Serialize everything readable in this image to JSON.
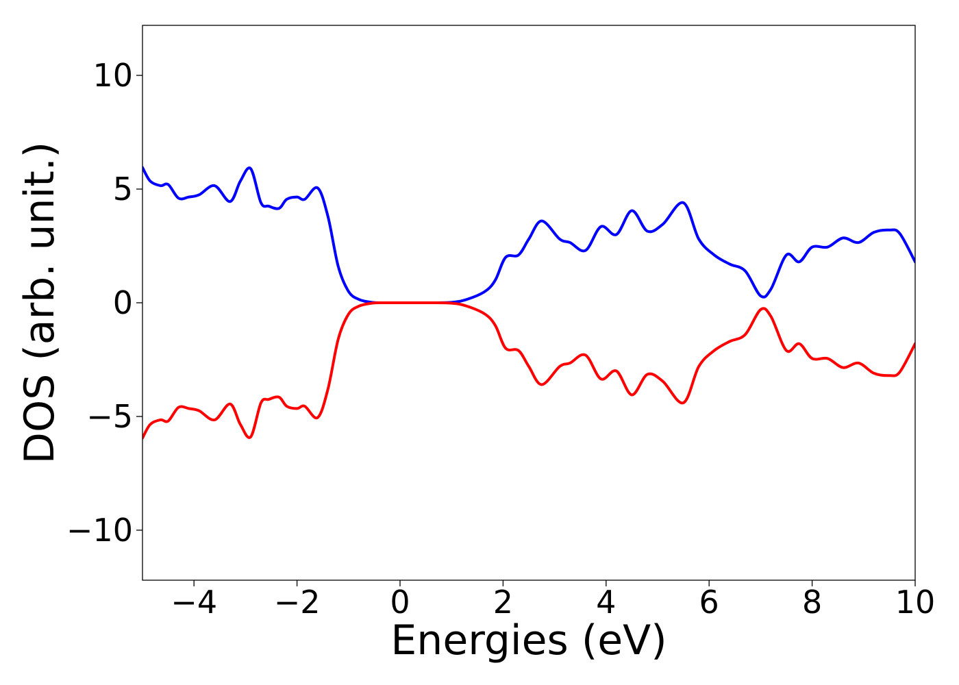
{
  "chart_data": {
    "type": "line",
    "title": "",
    "xlabel": "Energies (eV)",
    "ylabel": "DOS (arb. unit.)",
    "xlim": [
      -5,
      10
    ],
    "ylim": [
      -12.2,
      12.2
    ],
    "xticks": [
      -4,
      -2,
      0,
      2,
      4,
      6,
      8,
      10
    ],
    "yticks": [
      -10,
      -5,
      0,
      5,
      10
    ],
    "xtick_labels": [
      "−4",
      "−2",
      "0",
      "2",
      "4",
      "6",
      "8",
      "10"
    ],
    "ytick_labels": [
      "−10",
      "−5",
      "0",
      "5",
      "10"
    ],
    "grid": false,
    "legend": "none",
    "series": [
      {
        "color": "#0000ff",
        "x": [
          -5.0,
          -4.85,
          -4.65,
          -4.5,
          -4.3,
          -4.1,
          -3.9,
          -3.6,
          -3.3,
          -3.1,
          -2.9,
          -2.7,
          -2.55,
          -2.35,
          -2.2,
          -2.0,
          -1.85,
          -1.6,
          -1.4,
          -1.2,
          -1.0,
          -0.8,
          -0.55,
          -0.3,
          0.0,
          0.5,
          1.0,
          1.3,
          1.65,
          1.85,
          2.05,
          2.3,
          2.5,
          2.75,
          3.1,
          3.3,
          3.6,
          3.9,
          4.2,
          4.5,
          4.8,
          5.1,
          5.5,
          5.8,
          6.1,
          6.4,
          6.7,
          7.0,
          7.2,
          7.5,
          7.75,
          8.0,
          8.3,
          8.6,
          8.9,
          9.2,
          9.5,
          9.7,
          10.0
        ],
        "values": [
          5.95,
          5.35,
          5.15,
          5.2,
          4.6,
          4.65,
          4.75,
          5.15,
          4.45,
          5.35,
          5.9,
          4.4,
          4.25,
          4.15,
          4.55,
          4.65,
          4.55,
          5.05,
          3.8,
          1.6,
          0.5,
          0.15,
          0.02,
          0.0,
          0.0,
          0.0,
          0.02,
          0.15,
          0.5,
          1.0,
          2.0,
          2.1,
          2.8,
          3.6,
          2.8,
          2.65,
          2.3,
          3.35,
          3.0,
          4.05,
          3.15,
          3.45,
          4.4,
          2.8,
          2.1,
          1.7,
          1.4,
          0.3,
          0.6,
          2.1,
          1.8,
          2.45,
          2.45,
          2.85,
          2.65,
          3.1,
          3.2,
          3.05,
          1.8
        ]
      },
      {
        "color": "#ff0000",
        "x": [
          -5.0,
          -4.85,
          -4.65,
          -4.5,
          -4.3,
          -4.1,
          -3.9,
          -3.6,
          -3.3,
          -3.1,
          -2.9,
          -2.7,
          -2.55,
          -2.35,
          -2.2,
          -2.0,
          -1.85,
          -1.6,
          -1.4,
          -1.2,
          -1.0,
          -0.8,
          -0.55,
          -0.3,
          0.0,
          0.5,
          1.0,
          1.3,
          1.65,
          1.85,
          2.05,
          2.3,
          2.5,
          2.75,
          3.1,
          3.3,
          3.6,
          3.9,
          4.2,
          4.5,
          4.8,
          5.1,
          5.5,
          5.8,
          6.1,
          6.4,
          6.7,
          7.0,
          7.2,
          7.5,
          7.75,
          8.0,
          8.3,
          8.6,
          8.9,
          9.2,
          9.5,
          9.7,
          10.0
        ],
        "values": [
          -5.95,
          -5.35,
          -5.15,
          -5.2,
          -4.6,
          -4.65,
          -4.75,
          -5.15,
          -4.45,
          -5.35,
          -5.9,
          -4.4,
          -4.25,
          -4.15,
          -4.55,
          -4.65,
          -4.55,
          -5.05,
          -3.8,
          -1.6,
          -0.5,
          -0.15,
          -0.02,
          0.0,
          0.0,
          0.0,
          -0.02,
          -0.15,
          -0.5,
          -1.0,
          -2.0,
          -2.1,
          -2.8,
          -3.6,
          -2.8,
          -2.65,
          -2.3,
          -3.35,
          -3.0,
          -4.05,
          -3.15,
          -3.45,
          -4.4,
          -2.8,
          -2.1,
          -1.7,
          -1.4,
          -0.3,
          -0.6,
          -2.1,
          -1.8,
          -2.45,
          -2.45,
          -2.85,
          -2.65,
          -3.1,
          -3.2,
          -3.05,
          -1.8
        ]
      }
    ]
  }
}
